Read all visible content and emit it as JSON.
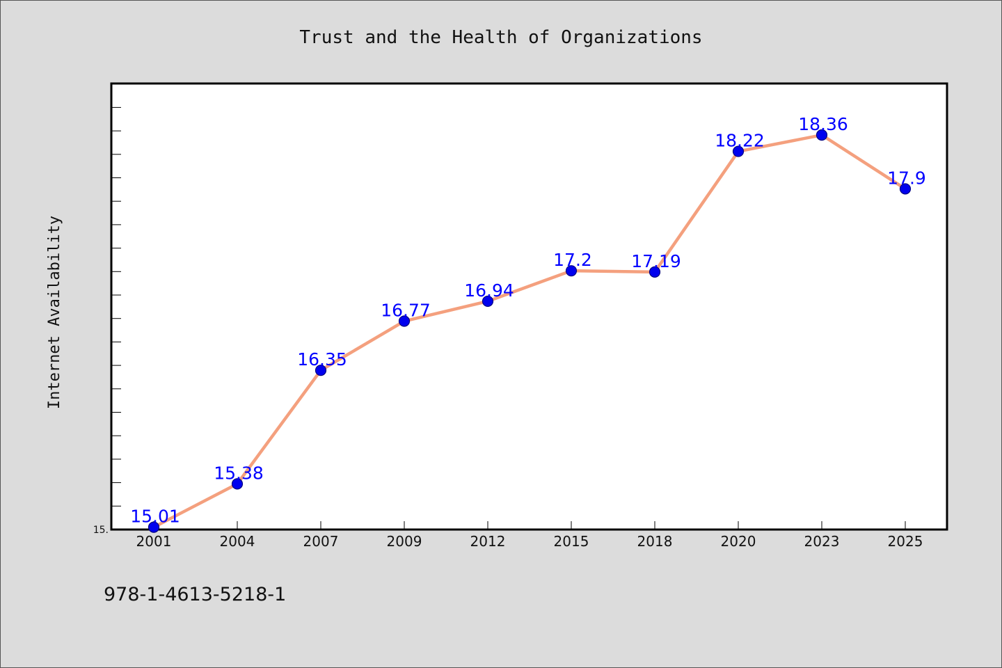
{
  "chart_data": {
    "type": "line",
    "title": "Trust and the Health of Organizations",
    "ylabel": "Internet Availability",
    "xlabel": "",
    "categories": [
      "2001",
      "2004",
      "2007",
      "2009",
      "2012",
      "2015",
      "2018",
      "2020",
      "2023",
      "2025"
    ],
    "values": [
      15.01,
      15.38,
      16.35,
      16.77,
      16.94,
      17.2,
      17.19,
      18.22,
      18.36,
      17.9
    ],
    "data_labels": [
      "15.01",
      "15.38",
      "16.35",
      "16.77",
      "16.94",
      "17.2",
      "17.19",
      "18.22",
      "18.36",
      "17.9"
    ],
    "ylim": [
      14.99,
      18.8
    ],
    "y_tick_labels": [
      "15."
    ],
    "grid": false,
    "colors": {
      "line": "#f4a07e",
      "marker": "#0000ee",
      "marker_edge": "#000080",
      "data_label": "#0000ff",
      "plot_bg": "#ffffff",
      "figure_bg": "#dcdcdc"
    }
  },
  "footer": {
    "isbn": "978-1-4613-5218-1"
  }
}
